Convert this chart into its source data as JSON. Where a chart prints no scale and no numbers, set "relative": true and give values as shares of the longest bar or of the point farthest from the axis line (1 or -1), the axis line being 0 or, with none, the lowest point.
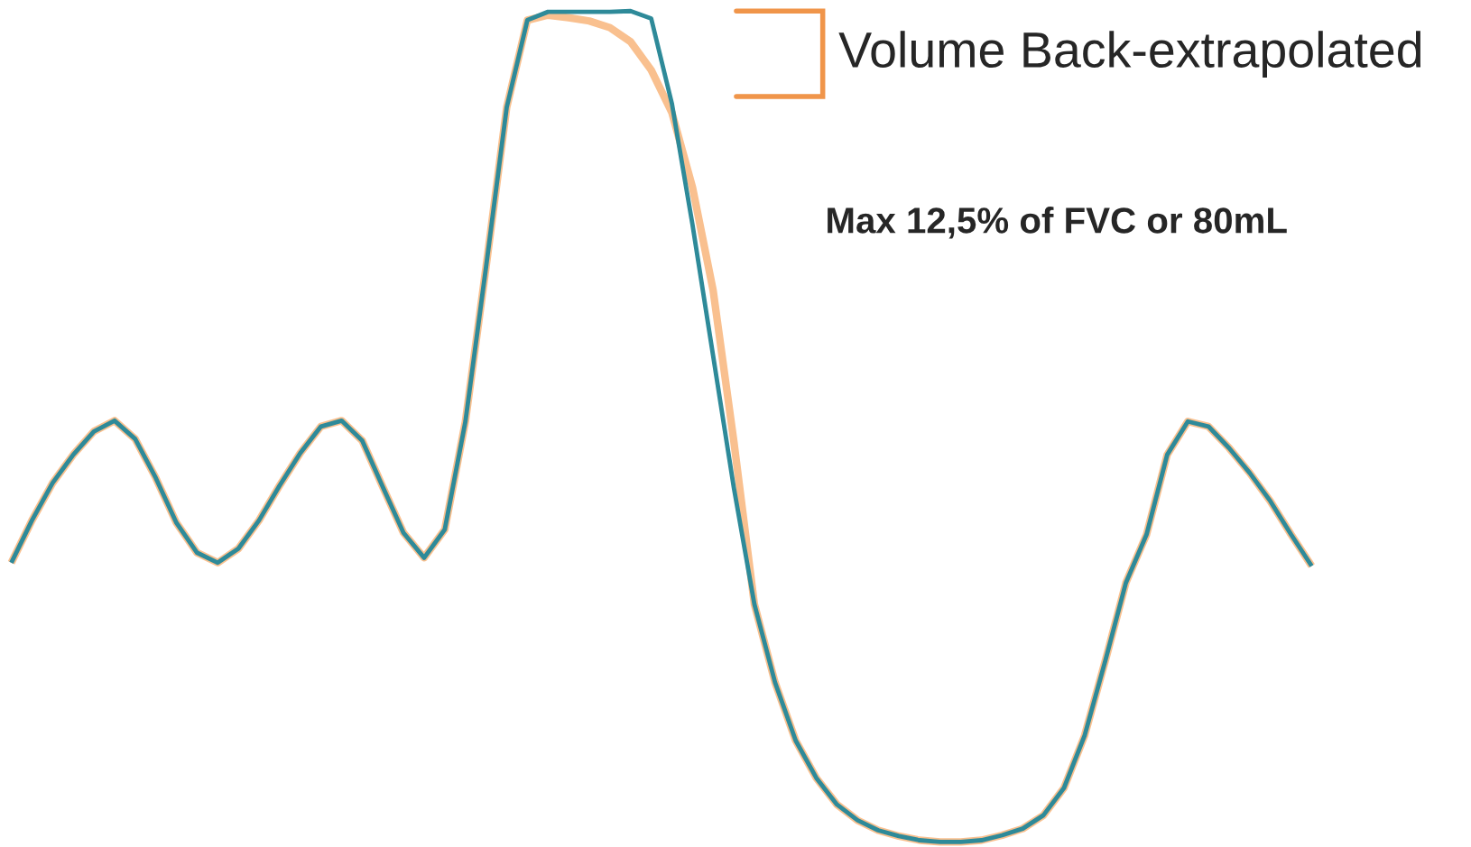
{
  "chart_data": {
    "type": "line",
    "relative": true,
    "categories": [
      null,
      null,
      null,
      null,
      null,
      null,
      null,
      null,
      null,
      null,
      null,
      null,
      null,
      null,
      null,
      null,
      null,
      null,
      null,
      null,
      null,
      null,
      null,
      null,
      null,
      null,
      null,
      null,
      null,
      null,
      null,
      null,
      null,
      null,
      null,
      null,
      null,
      null,
      null,
      null,
      null,
      null,
      null,
      null,
      null,
      null,
      null,
      null,
      null,
      null,
      null,
      null,
      null,
      null,
      null,
      null,
      null,
      null,
      null,
      null,
      null,
      null,
      null,
      null
    ],
    "series": [
      {
        "color": "#f9c08f",
        "values": [
          0.336,
          0.387,
          0.432,
          0.466,
          0.494,
          0.507,
          0.485,
          0.438,
          0.384,
          0.348,
          0.336,
          0.353,
          0.387,
          0.429,
          0.468,
          0.5,
          0.507,
          0.483,
          0.427,
          0.372,
          0.342,
          0.376,
          0.506,
          0.692,
          0.884,
          0.989,
          0.995,
          0.992,
          0.988,
          0.98,
          0.963,
          0.929,
          0.878,
          0.788,
          0.664,
          0.483,
          0.286,
          0.192,
          0.122,
          0.077,
          0.045,
          0.026,
          0.014,
          0.007,
          0.002,
          0,
          0,
          0.002,
          0.008,
          0.016,
          0.032,
          0.065,
          0.128,
          0.218,
          0.312,
          0.37,
          0.466,
          0.506,
          0.5,
          0.474,
          0.444,
          0.41,
          0.37,
          0.332
        ]
      },
      {
        "color": "#2e8a99",
        "values": [
          0.336,
          0.387,
          0.432,
          0.466,
          0.494,
          0.507,
          0.485,
          0.438,
          0.384,
          0.348,
          0.336,
          0.353,
          0.387,
          0.429,
          0.468,
          0.5,
          0.507,
          0.483,
          0.427,
          0.372,
          0.342,
          0.376,
          0.506,
          0.692,
          0.884,
          0.989,
          0.999,
          0.999,
          0.999,
          0.999,
          1,
          0.991,
          0.889,
          0.743,
          0.585,
          0.427,
          0.286,
          0.192,
          0.122,
          0.077,
          0.045,
          0.026,
          0.014,
          0.007,
          0.002,
          0,
          0,
          0.002,
          0.008,
          0.016,
          0.032,
          0.065,
          0.128,
          0.218,
          0.312,
          0.37,
          0.466,
          0.506,
          0.5,
          0.474,
          0.444,
          0.41,
          0.37,
          0.332
        ]
      }
    ],
    "annotations": [
      "Volume Back-extrapolated",
      "Max 12,5% of FVC or 80mL"
    ],
    "marker": "none",
    "line_style": "solid"
  }
}
